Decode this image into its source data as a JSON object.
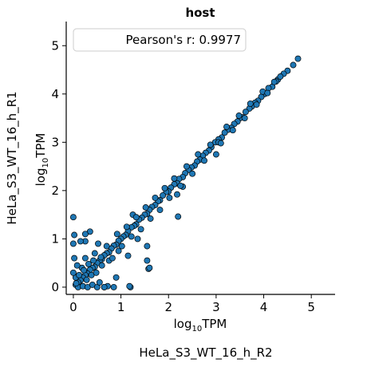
{
  "chart_data": {
    "type": "scatter",
    "title": "host",
    "xlabel": "log10TPM",
    "ylabel": "log10TPM",
    "xlabel_base": "log",
    "xlabel_sub": "10",
    "xlabel_tail": "TPM",
    "outer_xlabel": "HeLa_S3_WT_16_h_R2",
    "outer_ylabel": "HeLa_S3_WT_16_h_R1",
    "legend": "Pearson's r: 0.9977",
    "legend_position": "top-left",
    "xlim": [
      -0.15,
      5.5
    ],
    "ylim": [
      -0.15,
      5.5
    ],
    "xticks": [
      0,
      1,
      2,
      3,
      4,
      5
    ],
    "yticks": [
      0,
      1,
      2,
      3,
      4,
      5
    ],
    "marker_color": "#1f77b4",
    "marker_edge": "#000000",
    "points": [
      [
        4.72,
        4.73
      ],
      [
        4.62,
        4.6
      ],
      [
        4.5,
        4.48
      ],
      [
        4.42,
        4.42
      ],
      [
        4.3,
        4.3
      ],
      [
        4.26,
        4.26
      ],
      [
        4.18,
        4.15
      ],
      [
        4.1,
        4.12
      ],
      [
        4.02,
        4.0
      ],
      [
        3.95,
        3.94
      ],
      [
        3.88,
        3.86
      ],
      [
        3.82,
        3.82
      ],
      [
        3.75,
        3.74
      ],
      [
        3.7,
        3.7
      ],
      [
        3.62,
        3.63
      ],
      [
        3.55,
        3.52
      ],
      [
        3.5,
        3.5
      ],
      [
        3.45,
        3.43
      ],
      [
        3.38,
        3.38
      ],
      [
        3.32,
        3.3
      ],
      [
        3.25,
        3.26
      ],
      [
        3.18,
        3.2
      ],
      [
        3.12,
        3.1
      ],
      [
        3.05,
        3.06
      ],
      [
        2.98,
        3.0
      ],
      [
        2.9,
        2.9
      ],
      [
        2.85,
        2.83
      ],
      [
        2.78,
        2.78
      ],
      [
        2.72,
        2.72
      ],
      [
        2.66,
        2.64
      ],
      [
        2.6,
        2.6
      ],
      [
        2.55,
        2.52
      ],
      [
        2.48,
        2.48
      ],
      [
        2.42,
        2.43
      ],
      [
        2.35,
        2.36
      ],
      [
        2.3,
        2.28
      ],
      [
        2.22,
        2.24
      ],
      [
        2.18,
        2.15
      ],
      [
        2.12,
        2.13
      ],
      [
        2.05,
        2.06
      ],
      [
        2.0,
        1.98
      ],
      [
        1.95,
        1.97
      ],
      [
        1.88,
        1.9
      ],
      [
        1.82,
        1.8
      ],
      [
        1.78,
        1.78
      ],
      [
        1.72,
        1.7
      ],
      [
        1.65,
        1.66
      ],
      [
        1.6,
        1.6
      ],
      [
        1.55,
        1.52
      ],
      [
        1.5,
        1.5
      ],
      [
        1.44,
        1.44
      ],
      [
        1.38,
        1.4
      ],
      [
        1.32,
        1.3
      ],
      [
        1.28,
        1.27
      ],
      [
        1.22,
        1.24
      ],
      [
        1.15,
        1.16
      ],
      [
        1.1,
        1.08
      ],
      [
        1.05,
        1.05
      ],
      [
        1.0,
        1.0
      ],
      [
        0.95,
        0.96
      ],
      [
        0.9,
        0.88
      ],
      [
        0.85,
        0.86
      ],
      [
        0.8,
        0.8
      ],
      [
        0.75,
        0.72
      ],
      [
        0.7,
        0.7
      ],
      [
        0.65,
        0.66
      ],
      [
        0.6,
        0.58
      ],
      [
        0.55,
        0.55
      ],
      [
        0.5,
        0.5
      ],
      [
        0.45,
        0.42
      ],
      [
        0.4,
        0.4
      ],
      [
        0.35,
        0.36
      ],
      [
        0.3,
        0.28
      ],
      [
        0.25,
        0.25
      ],
      [
        0.2,
        0.2
      ],
      [
        0.15,
        0.14
      ],
      [
        0.1,
        0.1
      ],
      [
        0.05,
        0.05
      ],
      [
        3.0,
        2.75
      ],
      [
        3.05,
        3.0
      ],
      [
        2.3,
        2.08
      ],
      [
        2.18,
        1.92
      ],
      [
        2.2,
        1.46
      ],
      [
        1.25,
        1.5
      ],
      [
        1.55,
        0.55
      ],
      [
        1.55,
        0.85
      ],
      [
        1.58,
        0.38
      ],
      [
        0.75,
        0.55
      ],
      [
        1.6,
        0.4
      ],
      [
        1.2,
        0.0
      ],
      [
        1.15,
        0.65
      ],
      [
        1.35,
        1.0
      ],
      [
        0.65,
        0.0
      ],
      [
        0.72,
        0.02
      ],
      [
        0.9,
        0.2
      ],
      [
        0.95,
        0.75
      ],
      [
        0.52,
        0.9
      ],
      [
        0.35,
        1.15
      ],
      [
        0.25,
        0.95
      ],
      [
        0.15,
        0.95
      ],
      [
        0.02,
        1.08
      ],
      [
        0.0,
        0.9
      ],
      [
        0.02,
        0.6
      ],
      [
        0.0,
        1.45
      ],
      [
        0.25,
        1.1
      ],
      [
        0.05,
        0.2
      ],
      [
        0.1,
        0.0
      ],
      [
        0.2,
        0.02
      ],
      [
        0.3,
        0.0
      ],
      [
        0.4,
        0.05
      ],
      [
        0.5,
        0.0
      ],
      [
        0.55,
        0.1
      ],
      [
        0.65,
        0.0
      ],
      [
        0.85,
        0.0
      ],
      [
        1.18,
        0.02
      ],
      [
        0.45,
        0.7
      ],
      [
        0.6,
        0.45
      ],
      [
        0.42,
        0.55
      ],
      [
        0.25,
        0.6
      ],
      [
        0.38,
        0.25
      ],
      [
        0.18,
        0.4
      ],
      [
        0.08,
        0.45
      ],
      [
        0.0,
        0.3
      ],
      [
        0.12,
        0.25
      ],
      [
        0.28,
        0.15
      ],
      [
        0.06,
        0.08
      ],
      [
        0.22,
        0.35
      ],
      [
        0.32,
        0.48
      ],
      [
        0.48,
        0.3
      ],
      [
        0.58,
        0.62
      ],
      [
        0.7,
        0.85
      ],
      [
        0.82,
        0.6
      ],
      [
        0.92,
        1.1
      ],
      [
        1.02,
        0.85
      ],
      [
        1.12,
        1.25
      ],
      [
        1.22,
        1.05
      ],
      [
        1.32,
        1.45
      ],
      [
        1.42,
        1.2
      ],
      [
        1.52,
        1.65
      ],
      [
        1.62,
        1.42
      ],
      [
        1.72,
        1.85
      ],
      [
        1.82,
        1.6
      ],
      [
        1.92,
        2.05
      ],
      [
        2.02,
        1.85
      ],
      [
        2.12,
        2.25
      ],
      [
        2.25,
        2.1
      ],
      [
        2.38,
        2.5
      ],
      [
        2.5,
        2.35
      ],
      [
        2.62,
        2.75
      ],
      [
        2.75,
        2.62
      ],
      [
        2.88,
        2.95
      ],
      [
        3.1,
        2.98
      ],
      [
        3.22,
        3.32
      ],
      [
        3.35,
        3.25
      ],
      [
        3.48,
        3.55
      ],
      [
        3.6,
        3.5
      ],
      [
        3.72,
        3.8
      ],
      [
        3.85,
        3.78
      ],
      [
        3.98,
        4.05
      ],
      [
        4.08,
        4.02
      ],
      [
        4.22,
        4.25
      ],
      [
        4.35,
        4.36
      ]
    ]
  }
}
